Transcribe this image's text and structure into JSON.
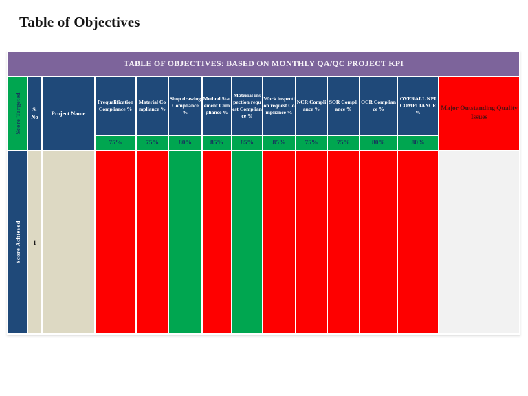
{
  "slide_title": "Table of Objectives",
  "banner_title": "TABLE OF OBJECTIVES: BASED ON MONTHLY QA/QC PROJECT KPI",
  "table": {
    "score_targeted_label": "Score Targeted",
    "score_achieved_label": "Score Achieved",
    "sno_header": "S. No",
    "project_name_header": "Project Name",
    "issues_header": "Major Outstanding Quality Issues",
    "columns": [
      {
        "header": "Prequalification Compliance %",
        "target": "75%",
        "status": "fail"
      },
      {
        "header": "Material Compliance %",
        "target": "75%",
        "status": "fail"
      },
      {
        "header": "Shop drawing Compliance %",
        "target": "80%",
        "status": "pass"
      },
      {
        "header": "Method Statement Compliance %",
        "target": "85%",
        "status": "fail"
      },
      {
        "header": "Material inspection request Compliance %",
        "target": "85%",
        "status": "pass"
      },
      {
        "header": "Work inspection request Compliance %",
        "target": "85%",
        "status": "fail"
      },
      {
        "header": "NCR Compliance %",
        "target": "75%",
        "status": "fail"
      },
      {
        "header": "SOR Compliance %",
        "target": "75%",
        "status": "fail"
      },
      {
        "header": "QCR Compliance %",
        "target": "80%",
        "status": "fail"
      },
      {
        "header": "OVERALL KPI COMPLIANCE %",
        "target": "80%",
        "status": "fail"
      }
    ],
    "row": {
      "sno": "1",
      "project_name": "",
      "issues": ""
    }
  },
  "colors": {
    "banner_purple": "#7d649b",
    "header_blue": "#1f4979",
    "pass_green": "#00a650",
    "fail_red": "#fe0000",
    "beige": "#ddd9c3",
    "light_gray": "#f2f2f2",
    "issues_text": "#550f0f",
    "target_text": "#17365d",
    "title_text": "#141414"
  }
}
